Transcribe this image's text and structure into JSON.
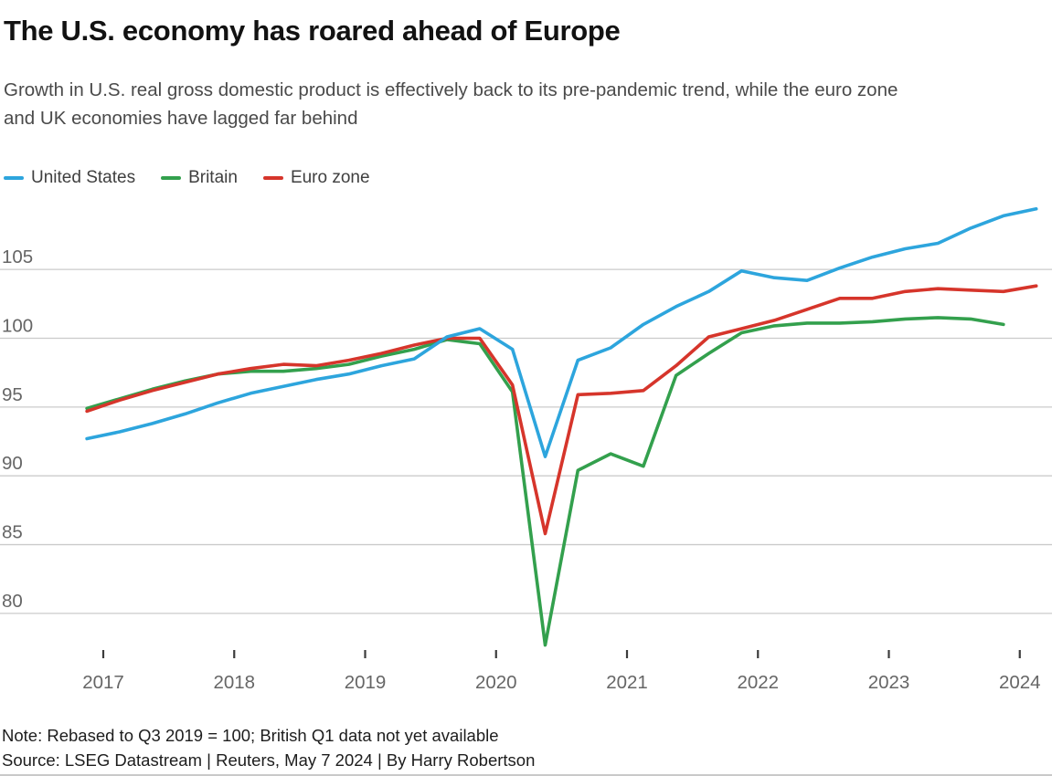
{
  "header": {
    "title": "The U.S. economy has roared ahead of Europe",
    "subtitle_line1": "Growth in U.S. real gross domestic product is effectively back to its pre-pandemic trend, while the euro zone",
    "subtitle_line2": "and UK economies have lagged far behind"
  },
  "chart_data": {
    "type": "line",
    "title": "The U.S. economy has roared ahead of Europe",
    "subtitle": "Growth in U.S. real gross domestic product is effectively back to its pre-pandemic trend, while the euro zone and UK economies have lagged far behind",
    "grid": "horizontal",
    "legend_position": "top-left",
    "ylim": [
      76,
      110
    ],
    "y_ticks": [
      105,
      100,
      95,
      90,
      85,
      80
    ],
    "x_tick_labels": [
      "2017",
      "2018",
      "2019",
      "2020",
      "2021",
      "2022",
      "2023",
      "2024"
    ],
    "x_unit": "quarterly, rebased Q3 2019 = 100",
    "quarters": [
      "2016 Q4",
      "2017 Q1",
      "2017 Q2",
      "2017 Q3",
      "2017 Q4",
      "2018 Q1",
      "2018 Q2",
      "2018 Q3",
      "2018 Q4",
      "2019 Q1",
      "2019 Q2",
      "2019 Q3",
      "2019 Q4",
      "2020 Q1",
      "2020 Q2",
      "2020 Q3",
      "2020 Q4",
      "2021 Q1",
      "2021 Q2",
      "2021 Q3",
      "2021 Q4",
      "2022 Q1",
      "2022 Q2",
      "2022 Q3",
      "2022 Q4",
      "2023 Q1",
      "2023 Q2",
      "2023 Q3",
      "2023 Q4",
      "2024 Q1"
    ],
    "series": [
      {
        "name": "United States",
        "color": "#2da5dd",
        "values": [
          92.7,
          93.2,
          93.8,
          94.5,
          95.3,
          96.0,
          96.5,
          97.0,
          97.4,
          98.0,
          98.5,
          100.1,
          100.7,
          99.2,
          91.4,
          98.4,
          99.3,
          101.0,
          102.3,
          103.4,
          104.9,
          104.4,
          104.2,
          105.1,
          105.9,
          106.5,
          106.9,
          108.0,
          108.9,
          109.4
        ]
      },
      {
        "name": "Britain",
        "color": "#33a04d",
        "values": [
          94.9,
          95.6,
          96.3,
          96.9,
          97.4,
          97.6,
          97.6,
          97.8,
          98.1,
          98.7,
          99.2,
          99.9,
          99.6,
          96.1,
          77.7,
          90.4,
          91.6,
          90.7,
          97.3,
          98.9,
          100.4,
          100.9,
          101.1,
          101.1,
          101.2,
          101.4,
          101.5,
          101.4,
          101.0
        ]
      },
      {
        "name": "Euro zone",
        "color": "#d6352b",
        "values": [
          94.7,
          95.5,
          96.2,
          96.8,
          97.4,
          97.8,
          98.1,
          98.0,
          98.4,
          98.9,
          99.5,
          100.0,
          100.0,
          96.6,
          85.8,
          95.9,
          96.0,
          96.2,
          98.0,
          100.1,
          100.7,
          101.3,
          102.1,
          102.9,
          102.9,
          103.4,
          103.6,
          103.5,
          103.4,
          103.8
        ]
      }
    ]
  },
  "legend": {
    "items": [
      {
        "label": "United States",
        "color": "#2da5dd"
      },
      {
        "label": "Britain",
        "color": "#33a04d"
      },
      {
        "label": "Euro zone",
        "color": "#d6352b"
      }
    ]
  },
  "footer": {
    "note": "Note: Rebased to Q3 2019 = 100; British Q1 data not yet available",
    "source": "Source: LSEG Datastream | Reuters, May 7 2024 | By Harry Robertson"
  },
  "style": {
    "gridline_color": "#cbcbcb",
    "axis_label_color": "#666666",
    "tick_color": "#3c3c3c"
  }
}
